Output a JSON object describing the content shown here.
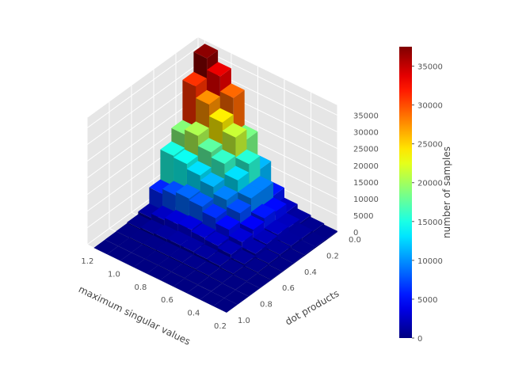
{
  "chart_data": {
    "type": "bar3d",
    "title": "",
    "xlabel": "maximum singular values",
    "ylabel": "dot products",
    "zlabel": "",
    "x_ticks": [
      "1.2",
      "1.0",
      "0.8",
      "0.6",
      "0.4",
      "0.2"
    ],
    "y_ticks": [
      "0.0",
      "0.2",
      "0.4",
      "0.6",
      "0.8",
      "1.0"
    ],
    "z_ticks": [
      "0",
      "5000",
      "10000",
      "15000",
      "20000",
      "25000",
      "30000",
      "35000"
    ],
    "xlim": [
      0.2,
      1.25
    ],
    "ylim": [
      0.0,
      1.0
    ],
    "zlim": [
      0,
      38000
    ],
    "bins": {
      "x": [
        0.2,
        0.3,
        0.4,
        0.5,
        0.6,
        0.7,
        0.8,
        0.9,
        1.0,
        1.1,
        1.2
      ],
      "y": [
        0.0,
        0.1,
        0.2,
        0.3,
        0.4,
        0.5,
        0.6,
        0.7,
        0.8,
        0.9,
        1.0
      ]
    },
    "grid": true,
    "colormap": "jet",
    "colorbar": {
      "label": "number of samples",
      "ticks": [
        "0",
        "5000",
        "10000",
        "15000",
        "20000",
        "25000",
        "30000",
        "35000"
      ],
      "range": [
        0,
        37500
      ]
    },
    "values": [
      [
        37000,
        31000,
        19000,
        15000,
        6000,
        1200,
        400,
        150,
        60,
        20
      ],
      [
        33500,
        27500,
        20500,
        14500,
        7500,
        2500,
        800,
        250,
        80,
        30
      ],
      [
        29000,
        24000,
        17500,
        13000,
        8500,
        3200,
        1100,
        350,
        100,
        40
      ],
      [
        18500,
        21500,
        16000,
        11500,
        8000,
        3500,
        1300,
        450,
        150,
        50
      ],
      [
        11500,
        15500,
        13000,
        9500,
        6500,
        3000,
        1300,
        500,
        180,
        60
      ],
      [
        5500,
        9500,
        9500,
        7500,
        5000,
        2600,
        1100,
        450,
        170,
        60
      ],
      [
        2500,
        5000,
        5500,
        4500,
        3200,
        1900,
        900,
        380,
        140,
        50
      ],
      [
        1200,
        2300,
        2600,
        2200,
        1700,
        1000,
        550,
        250,
        100,
        40
      ],
      [
        600,
        1000,
        1100,
        900,
        700,
        450,
        250,
        120,
        60,
        25
      ],
      [
        250,
        400,
        400,
        300,
        250,
        180,
        100,
        60,
        30,
        15
      ]
    ]
  },
  "colors": {
    "pane": "#e6e6e6",
    "grid": "#ffffff",
    "tick_text": "#555555",
    "label_text": "#444444"
  }
}
